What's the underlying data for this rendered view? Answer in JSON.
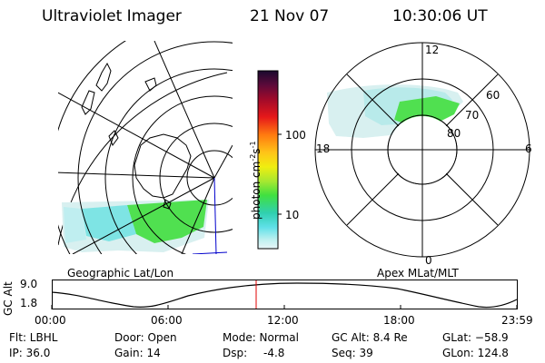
{
  "header": {
    "instrument": "Ultraviolet Imager",
    "date": "21 Nov 07",
    "time": "10:30:06 UT"
  },
  "colorbar": {
    "label": "photon cm",
    "label_exp1": "-2",
    "label_s": "s",
    "label_exp2": "-1",
    "ticks": [
      "100",
      "10"
    ],
    "colors": [
      "#1a0a2e",
      "#5c0a3a",
      "#a00a2a",
      "#e6181a",
      "#ff7a10",
      "#ffc418",
      "#f0ee10",
      "#a8e830",
      "#40e040",
      "#30d0b0",
      "#60e0e8",
      "#bff0f0",
      "#e8f6f8"
    ]
  },
  "geo_map": {
    "label": "Geographic Lat/Lon",
    "emission_colors": {
      "green": "#50e050",
      "cyan": "#60e0e0",
      "pale": "#d8f0f0"
    }
  },
  "polar_plot": {
    "label": "Apex MLat/MLT",
    "mlt_labels": {
      "top": "12",
      "bottom": "0",
      "left": "18",
      "right": "6"
    },
    "lat_labels": [
      "60",
      "70",
      "80"
    ]
  },
  "altitude_plot": {
    "ylabel": "GC Alt",
    "yticks": [
      "9.0",
      "1.8"
    ],
    "xticks": [
      "00:00",
      "06:00",
      "12:00",
      "18:00",
      "23:59"
    ],
    "marker_color": "#e00000",
    "marker_time": "10:30:06"
  },
  "info": {
    "row1": [
      "Flt: LBHL",
      "Door: Open",
      "Mode: Normal",
      "GC Alt: 8.4 Re",
      "GLat: −58.9"
    ],
    "row2": [
      "IP: 36.0",
      "Gain: 14",
      "Dsp:",
      "-4.8",
      "Seq: 39",
      "GLon: 124.8"
    ]
  }
}
